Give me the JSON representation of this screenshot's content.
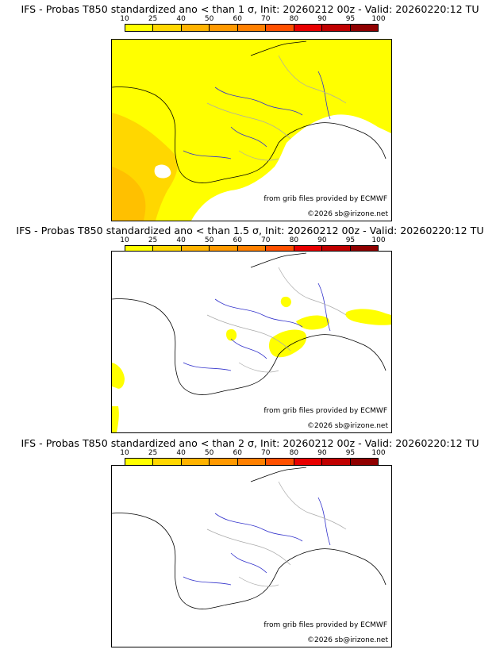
{
  "legend": {
    "ticks": [
      "10",
      "25",
      "40",
      "50",
      "60",
      "70",
      "80",
      "90",
      "95",
      "100"
    ],
    "colors": [
      "#ffff00",
      "#ffd700",
      "#ffb300",
      "#ff9900",
      "#ff8000",
      "#ff5000",
      "#e80000",
      "#c00000",
      "#900000",
      "#600000"
    ]
  },
  "panels": [
    {
      "title": "IFS - Probas T850  standardized ano < than 1 σ, Init: 20260212 00z - Valid: 20260220:12 TU",
      "credit_source": "from grib files provided by ECMWF",
      "credit_copyright": "©2026 sb@irizone.net"
    },
    {
      "title": "IFS - Probas T850  standardized ano < than 1.5 σ, Init: 20260212 00z - Valid: 20260220:12 TU",
      "credit_source": "from grib files provided by ECMWF",
      "credit_copyright": "©2026 sb@irizone.net"
    },
    {
      "title": "IFS - Probas T850  standardized ano < than 2 σ, Init: 20260212 00z - Valid: 20260220:12 TU",
      "credit_source": "from grib files provided by ECMWF",
      "credit_copyright": "©2026 sb@irizone.net"
    }
  ],
  "colors": {
    "coast": "#000000",
    "rivers": "#3333cc",
    "borders": "#aaaaaa"
  }
}
